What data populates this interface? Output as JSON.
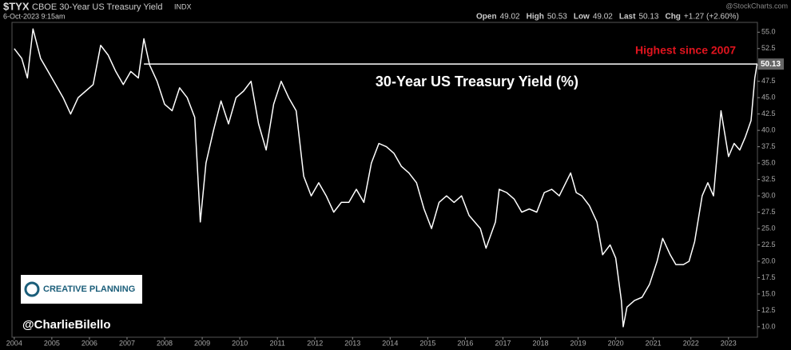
{
  "chart_data": {
    "type": "line",
    "header": {
      "symbol": "$TYX",
      "name": "CBOE 30-Year US Treasury Yield",
      "exchange": "INDX",
      "timestamp": "6-Oct-2023 9:15am",
      "source": "@StockCharts.com",
      "quote": [
        {
          "label": "Open",
          "value": "49.02"
        },
        {
          "label": "High",
          "value": "50.53"
        },
        {
          "label": "Low",
          "value": "49.02"
        },
        {
          "label": "Last",
          "value": "50.13"
        },
        {
          "label": "Chg",
          "value": "+1.27 (+2.60%)"
        }
      ]
    },
    "title": "30-Year US Treasury Yield (%)",
    "annotation": "Highest since 2007",
    "logo": "CREATIVE PLANNING",
    "credit": "@CharlieBilello",
    "last_value": 50.13,
    "reference_line": {
      "value": 50.13,
      "x_start": 2007.45
    },
    "color": "#ffffff",
    "annotation_color": "#e0141e",
    "xlim": [
      2003.94,
      2023.77
    ],
    "xticks": [
      2004,
      2005,
      2006,
      2007,
      2008,
      2009,
      2010,
      2011,
      2012,
      2013,
      2014,
      2015,
      2016,
      2017,
      2018,
      2019,
      2020,
      2021,
      2022,
      2023
    ],
    "ylim": [
      8.4,
      56.5
    ],
    "yticks": [
      {
        "value": 10,
        "label": "10.0"
      },
      12.5,
      {
        "value": 15,
        "label": "15.0"
      },
      17.5,
      {
        "value": 20,
        "label": "20.0"
      },
      22.5,
      {
        "value": 25,
        "label": "25.0"
      },
      27.5,
      {
        "value": 30,
        "label": "30.0"
      },
      32.5,
      {
        "value": 35,
        "label": "35.0"
      },
      37.5,
      {
        "value": 40,
        "label": "40.0"
      },
      42.5,
      {
        "value": 45,
        "label": "45.0"
      },
      47.5,
      {
        "value": 50,
        "label": "50.0"
      },
      52.5,
      {
        "value": 55,
        "label": "55.0"
      }
    ],
    "grid": false,
    "x": [
      2004.0,
      2004.2,
      2004.35,
      2004.5,
      2004.7,
      2004.9,
      2005.1,
      2005.3,
      2005.5,
      2005.7,
      2005.9,
      2006.1,
      2006.3,
      2006.5,
      2006.7,
      2006.9,
      2007.1,
      2007.3,
      2007.45,
      2007.6,
      2007.8,
      2008.0,
      2008.2,
      2008.4,
      2008.6,
      2008.8,
      2008.95,
      2009.1,
      2009.3,
      2009.5,
      2009.7,
      2009.9,
      2010.1,
      2010.3,
      2010.5,
      2010.7,
      2010.9,
      2011.1,
      2011.3,
      2011.5,
      2011.7,
      2011.9,
      2012.1,
      2012.3,
      2012.5,
      2012.7,
      2012.9,
      2013.1,
      2013.3,
      2013.5,
      2013.7,
      2013.9,
      2014.1,
      2014.3,
      2014.5,
      2014.7,
      2014.9,
      2015.1,
      2015.3,
      2015.5,
      2015.7,
      2015.9,
      2016.1,
      2016.4,
      2016.55,
      2016.8,
      2016.9,
      2017.1,
      2017.3,
      2017.5,
      2017.7,
      2017.9,
      2018.1,
      2018.3,
      2018.5,
      2018.8,
      2018.95,
      2019.1,
      2019.3,
      2019.5,
      2019.65,
      2019.85,
      2020.0,
      2020.15,
      2020.2,
      2020.3,
      2020.5,
      2020.7,
      2020.9,
      2021.1,
      2021.25,
      2021.45,
      2021.6,
      2021.8,
      2021.95,
      2022.1,
      2022.3,
      2022.45,
      2022.6,
      2022.8,
      2022.9,
      2023.0,
      2023.15,
      2023.3,
      2023.45,
      2023.6,
      2023.7,
      2023.76
    ],
    "values": [
      52.5,
      51,
      48,
      55.5,
      51,
      49,
      47,
      45,
      42.5,
      45,
      46,
      47,
      53,
      51.5,
      49,
      47,
      49,
      48,
      54,
      50,
      47.5,
      44,
      43,
      46.5,
      45,
      42,
      26,
      35,
      40,
      44.5,
      41,
      45,
      46,
      47.5,
      41,
      37,
      44,
      47.5,
      45,
      43,
      33,
      30,
      32,
      30,
      27.5,
      29,
      29,
      31,
      29,
      35,
      38,
      37.5,
      36.5,
      34.5,
      33.5,
      32,
      28,
      25,
      29,
      30,
      29,
      30,
      27,
      25,
      22,
      26,
      31,
      30.5,
      29.5,
      27.5,
      28,
      27.5,
      30.5,
      31,
      30,
      33.5,
      30.5,
      30,
      28.5,
      26,
      21,
      22.5,
      20.5,
      14,
      10,
      13,
      14,
      14.5,
      16.5,
      20,
      23.5,
      21,
      19.5,
      19.5,
      20,
      23,
      30,
      32,
      30,
      43,
      39.5,
      36,
      38,
      37,
      39,
      41.5,
      48,
      50.13
    ]
  }
}
